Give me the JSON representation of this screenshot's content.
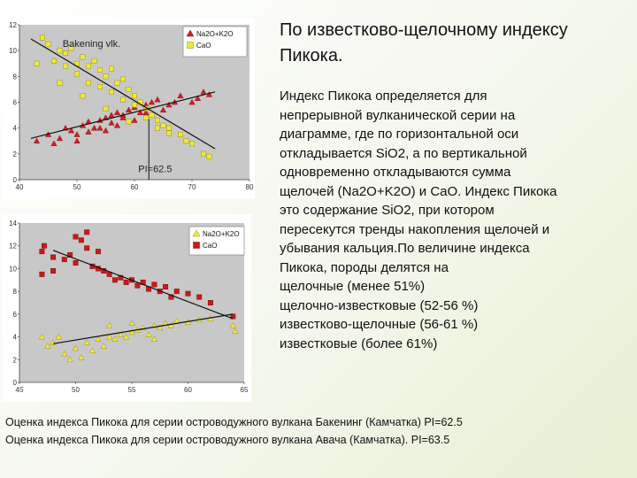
{
  "title": "По известково-щелочному индексу Пикока.",
  "body_text": "Индекс Пикока определяется для\nнепрерывной вулканической серии на\nдиаграмме, где по горизонтальной оси\nоткладывается SiO2, а по вертикальной\nодновременно откладываются сумма\nщелочей (Na2O+K2O) и CaO. Индекс Пикока\nэто содержание SiO2, при котором\nпересекутся тренды накопления щелочей и\nубывания кальция.По величине индекса\nПикока, породы делятся на\nщелочные (менее 51%)\nщелочно-известковые (52-56 %)\nизвестково-щелочные (56-61 %)\nизвестковые (более 61%)",
  "captions": [
    "Оценка индекса Пикока для серии островодужного вулкана Бакенинг (Камчатка) PI=62.5",
    "Оценка индекса Пикока для серии островодужного вулкана Авача (Камчатка). PI=63.5"
  ],
  "colors": {
    "alkali_marker": "#d42020",
    "cao_marker": "#f0ea30",
    "cao_square_chart2": "#cc1818",
    "alkali_triangle_chart2": "#f0e840",
    "plot_area": "#c8c8c8",
    "trend_line": "#111111"
  },
  "chart_data": [
    {
      "type": "scatter",
      "annotation": "Bakening vlk.",
      "pi_label": "PI=62.5",
      "pi_value": 62.5,
      "xlim": [
        40,
        80
      ],
      "ylim": [
        0,
        12
      ],
      "x_ticks": [
        "40",
        "50",
        "60",
        "70",
        "80"
      ],
      "y_ticks": [
        "0",
        "2",
        "4",
        "6",
        "8",
        "10",
        "12"
      ],
      "legend_position": "top-right",
      "series": [
        {
          "name": "Na2O+K2O",
          "marker": "triangle",
          "points": [
            [
              43,
              3
            ],
            [
              45,
              3.5
            ],
            [
              47,
              3.2
            ],
            [
              48,
              4
            ],
            [
              49,
              3.8
            ],
            [
              50,
              3.5
            ],
            [
              51,
              4.2
            ],
            [
              52,
              4.5
            ],
            [
              53,
              4
            ],
            [
              54,
              4.6
            ],
            [
              55,
              4.8
            ],
            [
              56,
              5
            ],
            [
              57,
              5.2
            ],
            [
              58,
              5
            ],
            [
              59,
              5.4
            ],
            [
              60,
              5.6
            ],
            [
              61,
              5.2
            ],
            [
              62,
              5.8
            ],
            [
              63,
              6
            ],
            [
              64,
              6.2
            ],
            [
              66,
              5.8
            ],
            [
              68,
              6.5
            ],
            [
              70,
              6
            ],
            [
              72,
              6.8
            ],
            [
              73,
              6.6
            ],
            [
              50,
              3
            ],
            [
              52,
              3.7
            ],
            [
              54,
              4
            ],
            [
              56,
              4.4
            ],
            [
              58,
              4.8
            ],
            [
              60,
              4.6
            ],
            [
              62,
              5.2
            ],
            [
              65,
              5.4
            ],
            [
              67,
              6
            ],
            [
              71,
              6.3
            ],
            [
              46,
              2.8
            ],
            [
              55,
              3.8
            ],
            [
              57,
              4.2
            ]
          ]
        },
        {
          "name": "CaO",
          "marker": "square",
          "points": [
            [
              45,
              10.5
            ],
            [
              47,
              10
            ],
            [
              48,
              9.8
            ],
            [
              49,
              10.2
            ],
            [
              50,
              9
            ],
            [
              51,
              9.5
            ],
            [
              52,
              8.8
            ],
            [
              53,
              9.2
            ],
            [
              54,
              8.5
            ],
            [
              55,
              8
            ],
            [
              56,
              8.6
            ],
            [
              57,
              7.5
            ],
            [
              58,
              7.8
            ],
            [
              59,
              7
            ],
            [
              60,
              6.5
            ],
            [
              61,
              6
            ],
            [
              62,
              5.5
            ],
            [
              63,
              5
            ],
            [
              64,
              4.6
            ],
            [
              65,
              4.2
            ],
            [
              66,
              4
            ],
            [
              68,
              3.5
            ],
            [
              70,
              2.8
            ],
            [
              72,
              2
            ],
            [
              73,
              1.8
            ],
            [
              44,
              11
            ],
            [
              46,
              9.2
            ],
            [
              48,
              8.8
            ],
            [
              50,
              8.2
            ],
            [
              52,
              7.5
            ],
            [
              54,
              7.2
            ],
            [
              56,
              6.8
            ],
            [
              58,
              6.2
            ],
            [
              60,
              5.8
            ],
            [
              62,
              4.8
            ],
            [
              64,
              4
            ],
            [
              66,
              3.6
            ],
            [
              69,
              3
            ],
            [
              47,
              7.5
            ],
            [
              51,
              6.5
            ],
            [
              55,
              5.5
            ],
            [
              59,
              4.5
            ],
            [
              43,
              9
            ]
          ]
        }
      ],
      "trend_lines": [
        {
          "series": "Na2O+K2O",
          "from": [
            42,
            3.2
          ],
          "to": [
            74,
            6.8
          ]
        },
        {
          "series": "CaO",
          "from": [
            42,
            10.9
          ],
          "to": [
            74,
            2.4
          ]
        }
      ]
    },
    {
      "type": "scatter",
      "xlim": [
        45,
        65
      ],
      "ylim": [
        0,
        14
      ],
      "x_ticks": [
        "45",
        "50",
        "55",
        "60",
        "65"
      ],
      "y_ticks": [
        "0",
        "2",
        "4",
        "6",
        "8",
        "10",
        "12",
        "14"
      ],
      "legend_position": "top-right",
      "series": [
        {
          "name": "Na2O+K2O",
          "marker": "triangle",
          "points": [
            [
              47,
              4
            ],
            [
              48,
              3.5
            ],
            [
              49,
              2.5
            ],
            [
              50,
              3
            ],
            [
              51,
              3.5
            ],
            [
              52,
              3.8
            ],
            [
              53,
              4
            ],
            [
              54,
              4.2
            ],
            [
              55,
              4.4
            ],
            [
              56,
              4.8
            ],
            [
              57,
              5
            ],
            [
              58,
              5.2
            ],
            [
              59,
              5.4
            ],
            [
              60,
              5.3
            ],
            [
              61,
              5.5
            ],
            [
              62,
              5.6
            ],
            [
              64,
              5
            ],
            [
              64.2,
              4.5
            ],
            [
              48.5,
              4
            ],
            [
              50.5,
              2.2
            ],
            [
              51.5,
              2.8
            ],
            [
              52.5,
              3.2
            ],
            [
              53.5,
              3.8
            ],
            [
              54.5,
              4
            ],
            [
              55.5,
              4.6
            ],
            [
              56.5,
              4.2
            ],
            [
              57.5,
              4.8
            ],
            [
              58.5,
              5
            ],
            [
              47.5,
              3.2
            ],
            [
              49.5,
              2
            ],
            [
              53,
              5
            ],
            [
              55,
              5.2
            ],
            [
              57,
              3.8
            ]
          ]
        },
        {
          "name": "CaO",
          "marker": "square",
          "points": [
            [
              47,
              11.5
            ],
            [
              47.2,
              12
            ],
            [
              48,
              11
            ],
            [
              49,
              10.8
            ],
            [
              50,
              10.5
            ],
            [
              50.5,
              12.5
            ],
            [
              51,
              11.8
            ],
            [
              52,
              10
            ],
            [
              53,
              9.5
            ],
            [
              54,
              9.2
            ],
            [
              55,
              9
            ],
            [
              56,
              8.8
            ],
            [
              57,
              8.6
            ],
            [
              58,
              8.4
            ],
            [
              59,
              8
            ],
            [
              60,
              7.8
            ],
            [
              61,
              7.5
            ],
            [
              62,
              7
            ],
            [
              64,
              5.8
            ],
            [
              47,
              9.5
            ],
            [
              48,
              9.8
            ],
            [
              49.5,
              11.2
            ],
            [
              51.5,
              10.2
            ],
            [
              52.5,
              9.8
            ],
            [
              53.5,
              9
            ],
            [
              54.5,
              8.8
            ],
            [
              55.5,
              8.5
            ],
            [
              56.5,
              8.2
            ],
            [
              57.5,
              8
            ],
            [
              58.5,
              7.5
            ],
            [
              50,
              12.8
            ],
            [
              51,
              13.2
            ],
            [
              52,
              11.5
            ]
          ]
        }
      ],
      "trend_lines": [
        {
          "series": "Na2O+K2O",
          "from": [
            48,
            3.4
          ],
          "to": [
            64,
            6
          ]
        },
        {
          "series": "CaO",
          "from": [
            48,
            11.6
          ],
          "to": [
            64,
            5.6
          ]
        }
      ]
    }
  ]
}
